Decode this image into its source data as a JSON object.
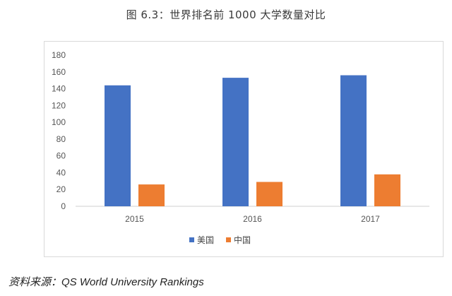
{
  "title": "图 6.3：世界排名前 1000 大学数量对比",
  "source": "资料来源：QS World University Rankings",
  "chart_data": {
    "type": "bar",
    "categories": [
      "2015",
      "2016",
      "2017"
    ],
    "series": [
      {
        "name": "美国",
        "values": [
          144,
          153,
          156
        ],
        "color": "#4472C4"
      },
      {
        "name": "中国",
        "values": [
          26,
          29,
          38
        ],
        "color": "#ED7D31"
      }
    ],
    "ylim": [
      0,
      180
    ],
    "yticks": [
      0,
      20,
      40,
      60,
      80,
      100,
      120,
      140,
      160,
      180
    ],
    "legend_position": "bottom",
    "grid": false
  }
}
